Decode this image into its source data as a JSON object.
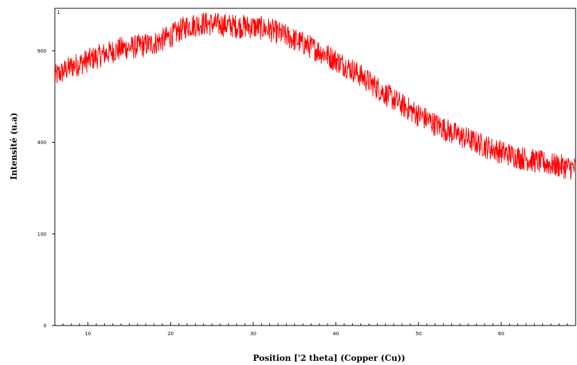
{
  "chart_data": {
    "type": "line",
    "title": "",
    "panel_label": "1",
    "xlabel": "Position ['2 theta] (Copper (Cu))",
    "ylabel": "Intensité (u.a)",
    "xlim": [
      6,
      69
    ],
    "ylim": [
      0,
      1200
    ],
    "y_scale": "sqrt",
    "grid": false,
    "xticks": [
      10,
      20,
      30,
      40,
      50,
      60
    ],
    "xtick_labels": [
      "10",
      "20",
      "30",
      "40",
      "50",
      "60"
    ],
    "yticks": [
      0,
      100,
      400,
      900
    ],
    "ytick_labels": [
      "0",
      "100",
      "400",
      "900"
    ],
    "series": [
      {
        "color": "#ff0000",
        "noisy": true,
        "x": [
          6,
          8,
          10,
          12,
          14,
          16,
          18,
          20,
          22,
          24,
          26,
          28,
          30,
          32,
          34,
          36,
          38,
          40,
          42,
          44,
          46,
          48,
          50,
          52,
          54,
          56,
          58,
          60,
          62,
          64,
          66,
          68,
          69
        ],
        "y": [
          740,
          800,
          840,
          880,
          915,
          930,
          950,
          1000,
          1070,
          1090,
          1080,
          1070,
          1065,
          1045,
          1000,
          950,
          900,
          840,
          780,
          710,
          640,
          580,
          530,
          485,
          445,
          415,
          385,
          360,
          340,
          325,
          310,
          300,
          295
        ]
      }
    ]
  }
}
